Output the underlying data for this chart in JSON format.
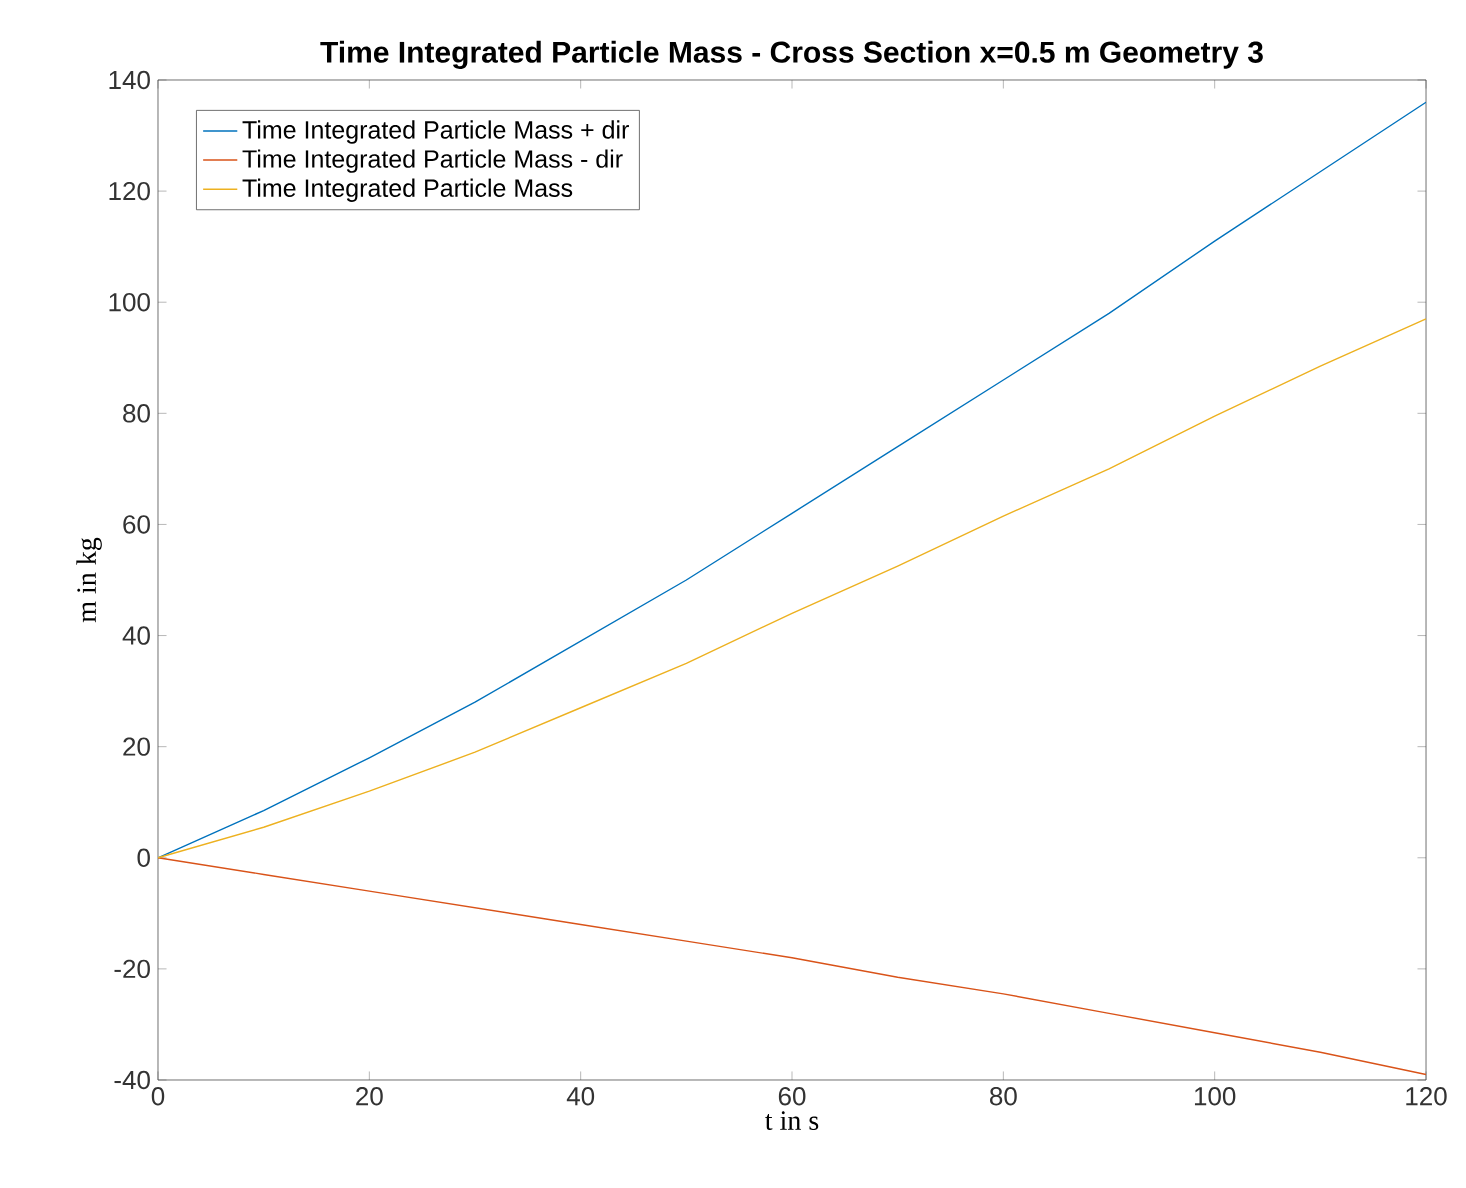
{
  "chart_data": {
    "type": "line",
    "title": "Time Integrated Particle Mass - Cross Section x=0.5 m Geometry 3",
    "xlabel": "t in s",
    "ylabel": "m in kg",
    "x": [
      0,
      10,
      20,
      30,
      40,
      50,
      60,
      70,
      80,
      90,
      100,
      110,
      120
    ],
    "series": [
      {
        "name": "Time Integrated Particle Mass + dir",
        "color": "#0072bd",
        "values": [
          0,
          8.5,
          18,
          28,
          39,
          50,
          62,
          74,
          86,
          98,
          111,
          123.5,
          136
        ]
      },
      {
        "name": "Time Integrated Particle Mass - dir",
        "color": "#d95319",
        "values": [
          0,
          -3,
          -6,
          -9,
          -12,
          -15,
          -18,
          -21.5,
          -24.5,
          -28,
          -31.5,
          -35,
          -39
        ]
      },
      {
        "name": "Time Integrated Particle Mass",
        "color": "#edb120",
        "values": [
          0,
          5.5,
          12,
          19,
          27,
          35,
          44,
          52.5,
          61.5,
          70,
          79.5,
          88.5,
          97
        ]
      }
    ],
    "xlim": [
      0,
      120
    ],
    "ylim": [
      -40,
      140
    ],
    "xticks": [
      0,
      20,
      40,
      60,
      80,
      100,
      120
    ],
    "yticks": [
      -40,
      -20,
      0,
      20,
      40,
      60,
      80,
      100,
      120,
      140
    ],
    "legend": "top left",
    "line_style": "solid"
  }
}
